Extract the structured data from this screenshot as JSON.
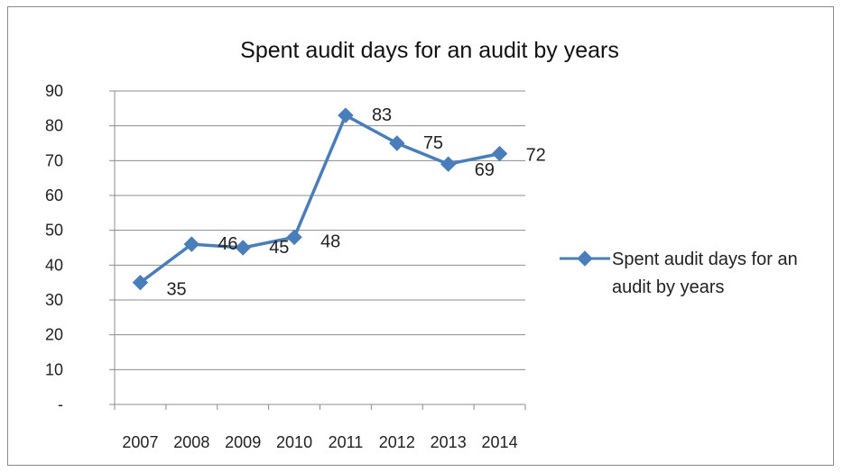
{
  "chart_data": {
    "type": "line",
    "title": "Spent audit days for an audit by years",
    "xlabel": "",
    "ylabel": "",
    "categories": [
      "2007",
      "2008",
      "2009",
      "2010",
      "2011",
      "2012",
      "2013",
      "2014"
    ],
    "series": [
      {
        "name": "Spent audit days for an audit by years",
        "values": [
          35,
          46,
          45,
          48,
          83,
          75,
          69,
          72
        ],
        "labels": [
          "35",
          "46",
          "45",
          "48",
          "83",
          "75",
          "69",
          "72"
        ],
        "color": "#4a7ebb"
      }
    ],
    "ylim": [
      0,
      90
    ],
    "yticks": [
      "-",
      "10",
      "20",
      "30",
      "40",
      "50",
      "60",
      "70",
      "80",
      "90"
    ],
    "grid": "horizontal",
    "legend_position": "right",
    "legend_lines": [
      "Spent audit days for an",
      "audit by years"
    ],
    "marker": "diamond"
  }
}
